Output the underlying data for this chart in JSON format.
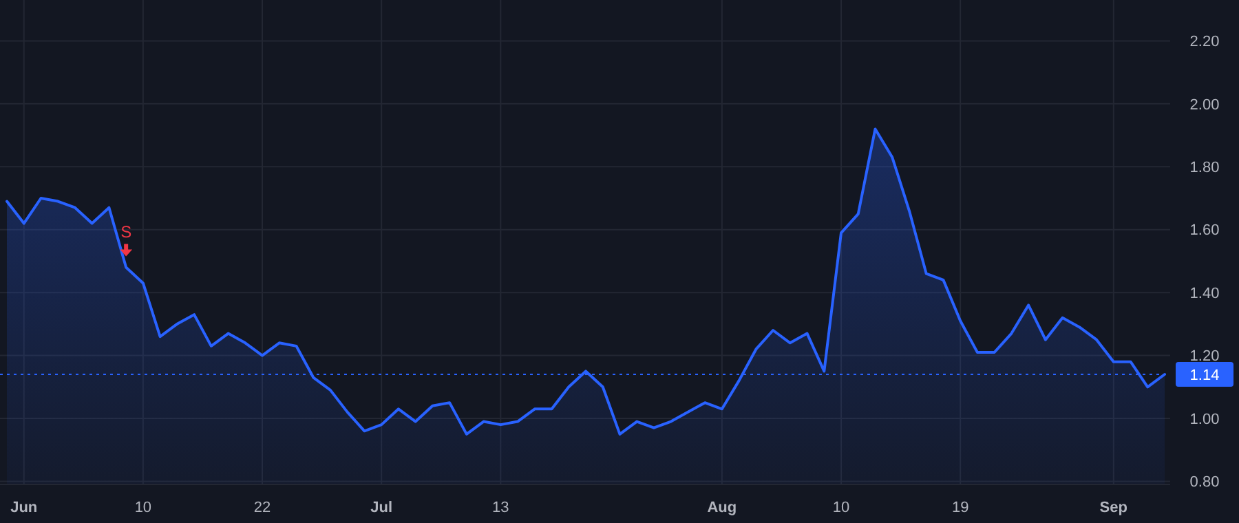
{
  "chart_data": {
    "type": "area",
    "categories": [
      null,
      "Jun",
      null,
      null,
      null,
      null,
      null,
      null,
      "10",
      null,
      null,
      null,
      null,
      null,
      null,
      "22",
      null,
      null,
      null,
      null,
      null,
      null,
      "Jul",
      null,
      null,
      null,
      null,
      null,
      null,
      "13",
      null,
      null,
      null,
      null,
      null,
      null,
      null,
      null,
      null,
      null,
      null,
      null,
      "Aug",
      null,
      null,
      null,
      null,
      null,
      null,
      "10",
      null,
      null,
      null,
      null,
      null,
      null,
      "19",
      null,
      null,
      null,
      null,
      null,
      null,
      null,
      null,
      "Sep",
      null,
      null,
      null
    ],
    "series": [
      {
        "color": "#2962ff",
        "values": [
          1.69,
          1.62,
          1.7,
          1.69,
          1.67,
          1.62,
          1.67,
          1.48,
          1.43,
          1.26,
          1.3,
          1.33,
          1.23,
          1.27,
          1.24,
          1.2,
          1.24,
          1.23,
          1.13,
          1.09,
          1.02,
          0.96,
          0.98,
          1.03,
          0.99,
          1.04,
          1.05,
          0.95,
          0.99,
          0.98,
          0.99,
          1.03,
          1.03,
          1.1,
          1.15,
          1.1,
          0.95,
          0.99,
          0.97,
          0.99,
          1.02,
          1.05,
          1.03,
          1.12,
          1.22,
          1.28,
          1.24,
          1.27,
          1.15,
          1.59,
          1.65,
          1.92,
          1.83,
          1.66,
          1.46,
          1.44,
          1.31,
          1.21,
          1.21,
          1.27,
          1.36,
          1.25,
          1.32,
          1.29,
          1.25,
          1.18,
          1.18,
          1.1,
          1.14
        ]
      }
    ],
    "ylim": [
      0.79,
      2.33
    ],
    "yticks": [
      {
        "value": 0.8,
        "label": "0.80"
      },
      {
        "value": 1.0,
        "label": "1.00"
      },
      {
        "value": 1.2,
        "label": "1.20"
      },
      {
        "value": 1.4,
        "label": "1.40"
      },
      {
        "value": 1.6,
        "label": "1.60"
      },
      {
        "value": 1.8,
        "label": "1.80"
      },
      {
        "value": 2.0,
        "label": "2.00"
      },
      {
        "value": 2.2,
        "label": "2.20"
      }
    ],
    "grid": true,
    "ref_lines": [
      {
        "axis": "y",
        "value": 1.14,
        "label": "1.14",
        "color": "#2962ff",
        "line_style": "dotted"
      }
    ],
    "annotations": [
      {
        "text": "S",
        "y": 1.48
      }
    ]
  }
}
